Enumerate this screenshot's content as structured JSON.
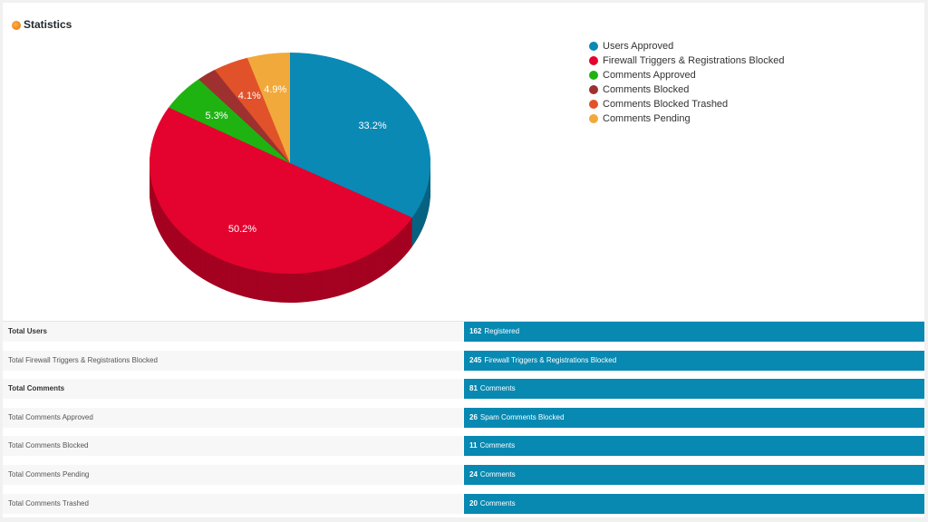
{
  "header": {
    "title": "Statistics",
    "icon": "orange-icon"
  },
  "chart_data": {
    "type": "pie",
    "style": "3d",
    "categories": [
      "Users Approved",
      "Firewall Triggers & Registrations Blocked",
      "Comments Approved",
      "Comments Blocked",
      "Comments Blocked Trashed",
      "Comments Pending"
    ],
    "values": [
      162,
      245,
      26,
      11,
      20,
      24
    ],
    "labels": [
      "33.2%",
      "50.2%",
      "5.3%",
      "",
      "4.1%",
      "4.9%"
    ],
    "colors": [
      "#0a89b5",
      "#e4032e",
      "#1fb312",
      "#9e3030",
      "#e2522a",
      "#f2a93b"
    ],
    "legend_position": "top-right"
  },
  "table": [
    {
      "label": "Total Users",
      "bold": true,
      "count": "162",
      "text": "Registered"
    },
    {
      "label": "Total Firewall Triggers & Registrations Blocked",
      "bold": false,
      "count": "245",
      "text": "Firewall Triggers & Registrations Blocked"
    },
    {
      "label": "Total Comments",
      "bold": true,
      "count": "81",
      "text": "Comments"
    },
    {
      "label": "Total Comments Approved",
      "bold": false,
      "count": "26",
      "text": "Spam Comments Blocked"
    },
    {
      "label": "Total Comments Blocked",
      "bold": false,
      "count": "11",
      "text": "Comments"
    },
    {
      "label": "Total Comments Pending",
      "bold": false,
      "count": "24",
      "text": "Comments"
    },
    {
      "label": "Total Comments Trashed",
      "bold": false,
      "count": "20",
      "text": "Comments"
    }
  ]
}
